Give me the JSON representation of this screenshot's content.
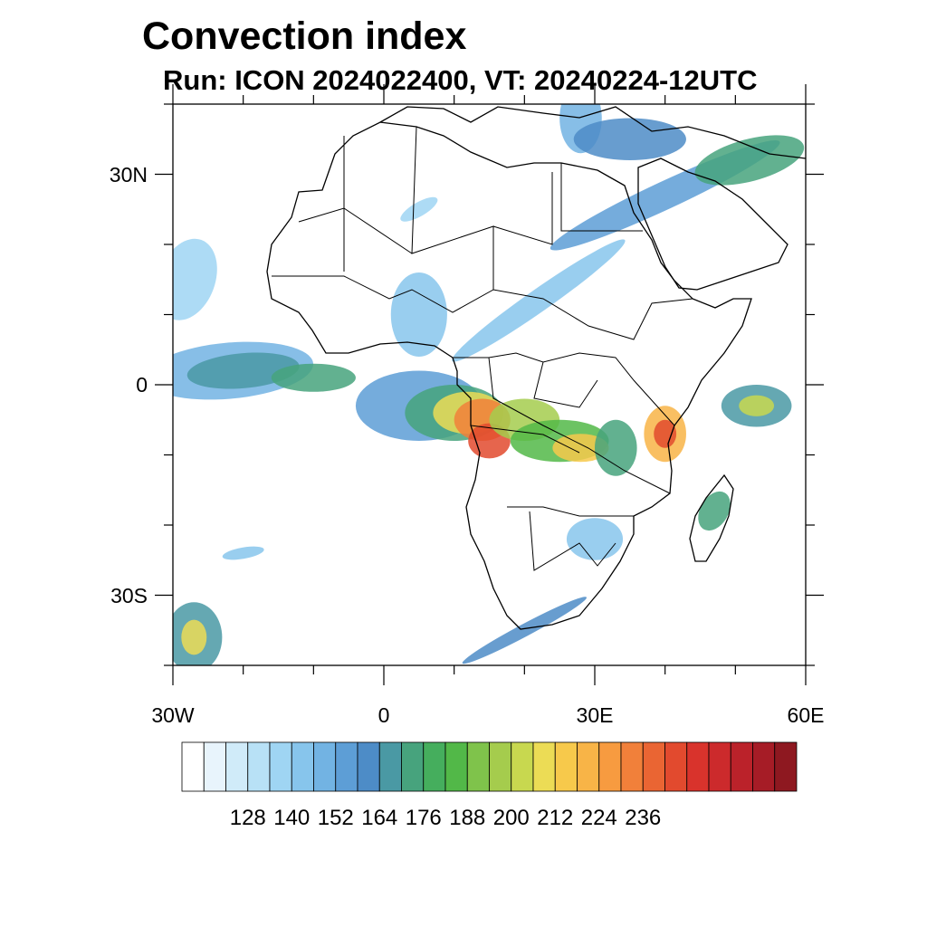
{
  "title": "Convection index",
  "subtitle": "Run: ICON 2024022400,  VT: 20240224-12UTC",
  "map": {
    "lon_range": [
      -30,
      60
    ],
    "lat_range": [
      -40,
      40
    ],
    "lat_ticks": [
      {
        "value": 30,
        "label": "30N"
      },
      {
        "value": 0,
        "label": "0"
      },
      {
        "value": -30,
        "label": "30S"
      }
    ],
    "lon_ticks": [
      {
        "value": -30,
        "label": "30W"
      },
      {
        "value": 0,
        "label": "0"
      },
      {
        "value": 30,
        "label": "30E"
      },
      {
        "value": 60,
        "label": "60E"
      }
    ]
  },
  "colorbar": {
    "levels": [
      128,
      140,
      152,
      164,
      176,
      188,
      200,
      212,
      224,
      236
    ],
    "colors": [
      "#ffffff",
      "#e8f4fc",
      "#d0ebf9",
      "#b8e1f6",
      "#9fd5f3",
      "#87c5ec",
      "#72b3e3",
      "#5d9ed6",
      "#4d8cc7",
      "#4a99a4",
      "#47a37d",
      "#45ae5d",
      "#52b848",
      "#7fc34b",
      "#a5cc4d",
      "#c8d84f",
      "#ecdc55",
      "#f7c94b",
      "#f8b447",
      "#f79b40",
      "#f1803a",
      "#ea6533",
      "#e24a2e",
      "#d9332c",
      "#cc2a2c",
      "#bb222a",
      "#a61c26",
      "#8e1820"
    ]
  },
  "style": {
    "land_line": "#000000",
    "frame": "#000000"
  }
}
